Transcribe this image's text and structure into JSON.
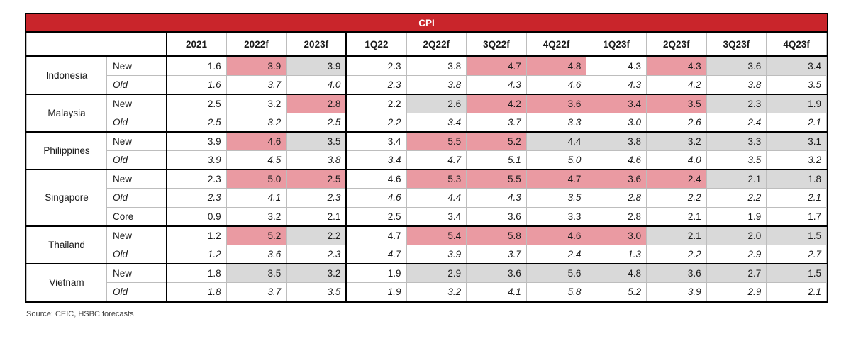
{
  "colors": {
    "banner_red": "#C9252B",
    "highlight_pink": "#EA9AA2",
    "highlight_gray": "#D9D9D9",
    "grid_line": "#BDBDBD",
    "frame_black": "#000000"
  },
  "chart_data": {
    "type": "table",
    "title": "CPI",
    "source": "Source: CEIC, HSBC forecasts",
    "columns": [
      "2021",
      "2022f",
      "2023f",
      "1Q22",
      "2Q22f",
      "3Q22f",
      "4Q22f",
      "1Q23f",
      "2Q23f",
      "3Q23f",
      "4Q23f"
    ],
    "highlight_codes": {
      "p": "pink",
      "g": "gray",
      "": "none"
    },
    "row_groups": [
      {
        "country": "Indonesia",
        "rows": [
          {
            "label": "New",
            "italic": false,
            "values": [
              "1.6",
              "3.9",
              "3.9",
              "2.3",
              "3.8",
              "4.7",
              "4.8",
              "4.3",
              "4.3",
              "3.6",
              "3.4"
            ],
            "highlights": [
              "",
              "p",
              "g",
              "",
              "",
              "p",
              "p",
              "",
              "p",
              "g",
              "g"
            ]
          },
          {
            "label": "Old",
            "italic": true,
            "values": [
              "1.6",
              "3.7",
              "4.0",
              "2.3",
              "3.8",
              "4.3",
              "4.6",
              "4.3",
              "4.2",
              "3.8",
              "3.5"
            ],
            "highlights": [
              "",
              "",
              "",
              "",
              "",
              "",
              "",
              "",
              "",
              "",
              ""
            ]
          }
        ]
      },
      {
        "country": "Malaysia",
        "rows": [
          {
            "label": "New",
            "italic": false,
            "values": [
              "2.5",
              "3.2",
              "2.8",
              "2.2",
              "2.6",
              "4.2",
              "3.6",
              "3.4",
              "3.5",
              "2.3",
              "1.9"
            ],
            "highlights": [
              "",
              "",
              "p",
              "",
              "g",
              "p",
              "p",
              "p",
              "p",
              "g",
              "g"
            ]
          },
          {
            "label": "Old",
            "italic": true,
            "values": [
              "2.5",
              "3.2",
              "2.5",
              "2.2",
              "3.4",
              "3.7",
              "3.3",
              "3.0",
              "2.6",
              "2.4",
              "2.1"
            ],
            "highlights": [
              "",
              "",
              "",
              "",
              "",
              "",
              "",
              "",
              "",
              "",
              ""
            ]
          }
        ]
      },
      {
        "country": "Philippines",
        "rows": [
          {
            "label": "New",
            "italic": false,
            "values": [
              "3.9",
              "4.6",
              "3.5",
              "3.4",
              "5.5",
              "5.2",
              "4.4",
              "3.8",
              "3.2",
              "3.3",
              "3.1"
            ],
            "highlights": [
              "",
              "p",
              "g",
              "",
              "p",
              "p",
              "g",
              "g",
              "g",
              "g",
              "g"
            ]
          },
          {
            "label": "Old",
            "italic": true,
            "values": [
              "3.9",
              "4.5",
              "3.8",
              "3.4",
              "4.7",
              "5.1",
              "5.0",
              "4.6",
              "4.0",
              "3.5",
              "3.2"
            ],
            "highlights": [
              "",
              "",
              "",
              "",
              "",
              "",
              "",
              "",
              "",
              "",
              ""
            ]
          }
        ]
      },
      {
        "country": "Singapore",
        "rows": [
          {
            "label": "New",
            "italic": false,
            "values": [
              "2.3",
              "5.0",
              "2.5",
              "4.6",
              "5.3",
              "5.5",
              "4.7",
              "3.6",
              "2.4",
              "2.1",
              "1.8"
            ],
            "highlights": [
              "",
              "p",
              "p",
              "",
              "p",
              "p",
              "p",
              "p",
              "p",
              "g",
              "g"
            ]
          },
          {
            "label": "Old",
            "italic": true,
            "values": [
              "2.3",
              "4.1",
              "2.3",
              "4.6",
              "4.4",
              "4.3",
              "3.5",
              "2.8",
              "2.2",
              "2.2",
              "2.1"
            ],
            "highlights": [
              "",
              "",
              "",
              "",
              "",
              "",
              "",
              "",
              "",
              "",
              ""
            ]
          },
          {
            "label": "Core",
            "italic": false,
            "values": [
              "0.9",
              "3.2",
              "2.1",
              "2.5",
              "3.4",
              "3.6",
              "3.3",
              "2.8",
              "2.1",
              "1.9",
              "1.7"
            ],
            "highlights": [
              "",
              "",
              "",
              "",
              "",
              "",
              "",
              "",
              "",
              "",
              ""
            ]
          }
        ]
      },
      {
        "country": "Thailand",
        "rows": [
          {
            "label": "New",
            "italic": false,
            "values": [
              "1.2",
              "5.2",
              "2.2",
              "4.7",
              "5.4",
              "5.8",
              "4.6",
              "3.0",
              "2.1",
              "2.0",
              "1.5"
            ],
            "highlights": [
              "",
              "p",
              "g",
              "",
              "p",
              "p",
              "p",
              "p",
              "g",
              "g",
              "g"
            ]
          },
          {
            "label": "Old",
            "italic": true,
            "values": [
              "1.2",
              "3.6",
              "2.3",
              "4.7",
              "3.9",
              "3.7",
              "2.4",
              "1.3",
              "2.2",
              "2.9",
              "2.7"
            ],
            "highlights": [
              "",
              "",
              "",
              "",
              "",
              "",
              "",
              "",
              "",
              "",
              ""
            ]
          }
        ]
      },
      {
        "country": "Vietnam",
        "rows": [
          {
            "label": "New",
            "italic": false,
            "values": [
              "1.8",
              "3.5",
              "3.2",
              "1.9",
              "2.9",
              "3.6",
              "5.6",
              "4.8",
              "3.6",
              "2.7",
              "1.5"
            ],
            "highlights": [
              "",
              "g",
              "g",
              "",
              "g",
              "g",
              "g",
              "g",
              "g",
              "g",
              "g"
            ]
          },
          {
            "label": "Old",
            "italic": true,
            "values": [
              "1.8",
              "3.7",
              "3.5",
              "1.9",
              "3.2",
              "4.1",
              "5.8",
              "5.2",
              "3.9",
              "2.9",
              "2.1"
            ],
            "highlights": [
              "",
              "",
              "",
              "",
              "",
              "",
              "",
              "",
              "",
              "",
              ""
            ]
          }
        ]
      }
    ]
  }
}
